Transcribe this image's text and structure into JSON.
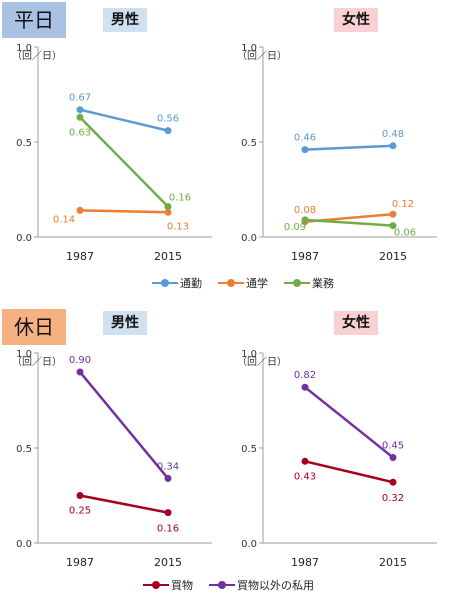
{
  "sections": {
    "weekday": {
      "label": "平日",
      "bg": "#a9c1e3"
    },
    "holiday": {
      "label": "休日",
      "bg": "#f6b183"
    }
  },
  "genders": {
    "male": {
      "label": "男性",
      "bg": "#cfe0f1"
    },
    "female": {
      "label": "女性",
      "bg": "#f9d1d4"
    }
  },
  "legends": {
    "weekday": [
      {
        "name": "通勤",
        "color": "#5b9bd5"
      },
      {
        "name": "通学",
        "color": "#ed7d31"
      },
      {
        "name": "業務",
        "color": "#70ad47"
      }
    ],
    "holiday": [
      {
        "name": "買物",
        "color": "#a50021"
      },
      {
        "name": "買物以外の私用",
        "color": "#7030a0"
      }
    ]
  },
  "chart_data": [
    {
      "type": "line",
      "id": "weekday-male",
      "categories": [
        "1987",
        "2015"
      ],
      "ylim": [
        0,
        1.0
      ],
      "yticks": [
        "0.0",
        "0.5",
        "1.0"
      ],
      "ylabel": "（回／日）",
      "series": [
        {
          "name": "通勤",
          "color": "#5b9bd5",
          "values": [
            0.67,
            0.56
          ],
          "labels": [
            "0.67",
            "0.56"
          ]
        },
        {
          "name": "通学",
          "color": "#ed7d31",
          "values": [
            0.14,
            0.13
          ],
          "labels": [
            "0.14",
            "0.13"
          ]
        },
        {
          "name": "業務",
          "color": "#70ad47",
          "values": [
            0.63,
            0.16
          ],
          "labels": [
            "0.63",
            "0.16"
          ]
        }
      ]
    },
    {
      "type": "line",
      "id": "weekday-female",
      "categories": [
        "1987",
        "2015"
      ],
      "ylim": [
        0,
        1.0
      ],
      "yticks": [
        "0.0",
        "0.5",
        "1.0"
      ],
      "ylabel": "（回／日）",
      "series": [
        {
          "name": "通勤",
          "color": "#5b9bd5",
          "values": [
            0.46,
            0.48
          ],
          "labels": [
            "0.46",
            "0.48"
          ]
        },
        {
          "name": "通学",
          "color": "#ed7d31",
          "values": [
            0.08,
            0.12
          ],
          "labels": [
            "0.08",
            "0.12"
          ]
        },
        {
          "name": "業務",
          "color": "#70ad47",
          "values": [
            0.09,
            0.06
          ],
          "labels": [
            "0.09",
            "0.06"
          ]
        }
      ]
    },
    {
      "type": "line",
      "id": "holiday-male",
      "categories": [
        "1987",
        "2015"
      ],
      "ylim": [
        0,
        1.0
      ],
      "yticks": [
        "0.0",
        "0.5",
        "1.0"
      ],
      "ylabel": "（回／日）",
      "series": [
        {
          "name": "買物",
          "color": "#a50021",
          "values": [
            0.25,
            0.16
          ],
          "labels": [
            "0.25",
            "0.16"
          ]
        },
        {
          "name": "買物以外の私用",
          "color": "#7030a0",
          "values": [
            0.9,
            0.34
          ],
          "labels": [
            "0.90",
            "0.34"
          ]
        }
      ]
    },
    {
      "type": "line",
      "id": "holiday-female",
      "categories": [
        "1987",
        "2015"
      ],
      "ylim": [
        0,
        1.0
      ],
      "yticks": [
        "0.0",
        "0.5",
        "1.0"
      ],
      "ylabel": "（回／日）",
      "series": [
        {
          "name": "買物",
          "color": "#a50021",
          "values": [
            0.43,
            0.32
          ],
          "labels": [
            "0.43",
            "0.32"
          ]
        },
        {
          "name": "買物以外の私用",
          "color": "#7030a0",
          "values": [
            0.82,
            0.45
          ],
          "labels": [
            "0.82",
            "0.45"
          ]
        }
      ]
    }
  ]
}
